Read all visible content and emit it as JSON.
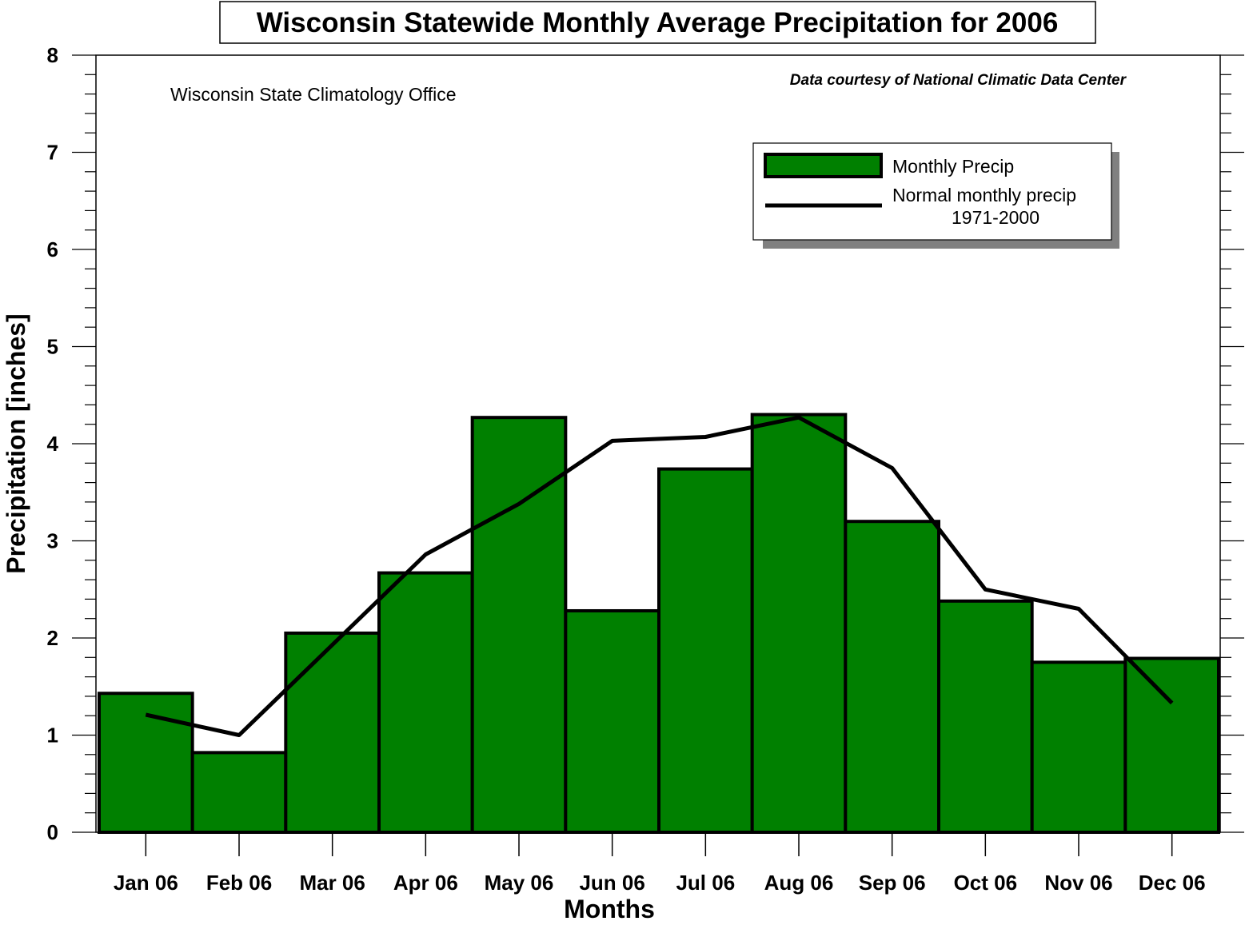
{
  "chart_data": {
    "type": "bar",
    "title": "Wisconsin Statewide Monthly Average Precipitation for 2006",
    "source_note": "Data courtesy of National Climatic Data Center",
    "credit": "Wisconsin State Climatology Office",
    "xlabel": "Months",
    "ylabel": "Precipitation [inches]",
    "ylim": [
      0,
      8
    ],
    "yticks": [
      "0",
      "1",
      "2",
      "3",
      "4",
      "5",
      "6",
      "7",
      "8"
    ],
    "categories": [
      "Jan 06",
      "Feb 06",
      "Mar 06",
      "Apr 06",
      "May 06",
      "Jun 06",
      "Jul 06",
      "Aug 06",
      "Sep 06",
      "Oct 06",
      "Nov 06",
      "Dec 06"
    ],
    "series": [
      {
        "name": "Monthly Precip",
        "kind": "bar",
        "color": "#008000",
        "values": [
          1.43,
          0.82,
          2.05,
          2.67,
          4.27,
          2.28,
          3.74,
          4.3,
          3.2,
          2.38,
          1.75,
          1.79
        ]
      },
      {
        "name": "Normal monthly precip",
        "name_line2": "1971-2000",
        "kind": "line",
        "color": "#000000",
        "values": [
          1.21,
          1.0,
          1.93,
          2.86,
          3.38,
          4.03,
          4.07,
          4.27,
          3.75,
          2.5,
          2.3,
          1.33
        ]
      }
    ],
    "grid": false,
    "legend_position": "top-right"
  }
}
